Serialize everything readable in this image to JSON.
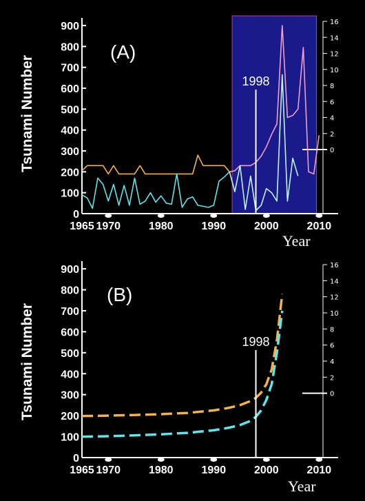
{
  "colors": {
    "background": "#000000",
    "axis": "#ffffff",
    "highlight": "#1a1a8c",
    "orange": "#f2b34a",
    "cyan": "#5ee6ea",
    "pink": "#f0a0c8",
    "light_cyan": "#bff4f6"
  },
  "chart_data": [
    {
      "type": "line",
      "panel_label": "(A)",
      "ylabel": "Tsunami Number",
      "xlabel": "Year",
      "xlim": [
        1965,
        2011
      ],
      "ylim": [
        0,
        920
      ],
      "x_ticks": [
        1965,
        1970,
        1980,
        1990,
        2000,
        2010
      ],
      "y_ticks": [
        0,
        100,
        200,
        300,
        400,
        500,
        600,
        700,
        800,
        900
      ],
      "right_axis_ticks": [
        0,
        2,
        4,
        6,
        8,
        10,
        12,
        14,
        16
      ],
      "right_axis_ylim": [
        -8,
        16
      ],
      "annotation": {
        "text": "1998",
        "x": 1998
      },
      "highlight_x": [
        1993.5,
        2009.5
      ],
      "series": [
        {
          "color": "orange",
          "x": [
            1965,
            1966,
            1967,
            1968,
            1969,
            1970,
            1971,
            1972,
            1973,
            1974,
            1975,
            1976,
            1977,
            1978,
            1979,
            1980,
            1981,
            1982,
            1983,
            1984,
            1985,
            1986,
            1987,
            1988,
            1989,
            1990,
            1991,
            1992,
            1993
          ],
          "y": [
            205,
            230,
            230,
            230,
            230,
            190,
            230,
            190,
            190,
            190,
            190,
            230,
            190,
            190,
            190,
            190,
            190,
            190,
            190,
            190,
            190,
            190,
            280,
            230,
            230,
            230,
            230,
            230,
            200
          ]
        },
        {
          "color": "cyan",
          "x": [
            1965,
            1966,
            1967,
            1968,
            1969,
            1970,
            1971,
            1972,
            1973,
            1974,
            1975,
            1976,
            1977,
            1978,
            1979,
            1980,
            1981,
            1982,
            1983,
            1984,
            1985,
            1986,
            1987,
            1988,
            1989,
            1990,
            1991,
            1992,
            1993
          ],
          "y": [
            90,
            75,
            25,
            170,
            140,
            60,
            140,
            40,
            135,
            40,
            170,
            45,
            60,
            100,
            55,
            85,
            50,
            45,
            190,
            30,
            70,
            80,
            40,
            35,
            30,
            40,
            155,
            175,
            200
          ]
        },
        {
          "color": "pink",
          "x": [
            1993,
            1994,
            1995,
            1996,
            1997,
            1998,
            1999,
            2000,
            2001,
            2002,
            2003,
            2004,
            2005,
            2006,
            2007,
            2008,
            2009,
            2010
          ],
          "y": [
            200,
            205,
            230,
            230,
            230,
            245,
            275,
            320,
            380,
            430,
            900,
            460,
            470,
            500,
            795,
            200,
            190,
            375
          ]
        },
        {
          "color": "light_cyan",
          "x": [
            1993,
            1994,
            1995,
            1996,
            1997,
            1998,
            1999,
            2000,
            2001,
            2002,
            2003,
            2004,
            2005,
            2006
          ],
          "y": [
            200,
            105,
            230,
            20,
            180,
            15,
            40,
            120,
            100,
            60,
            665,
            60,
            265,
            180
          ]
        }
      ]
    },
    {
      "type": "line",
      "panel_label": "(B)",
      "ylabel": "Tsunami Number",
      "xlabel": "Year",
      "xlim": [
        1965,
        2011
      ],
      "ylim": [
        0,
        920
      ],
      "x_ticks": [
        1965,
        1970,
        1980,
        1990,
        2000,
        2010
      ],
      "y_ticks": [
        0,
        100,
        200,
        300,
        400,
        500,
        600,
        700,
        800,
        900
      ],
      "right_axis_ticks": [
        0,
        2,
        4,
        6,
        8,
        10,
        12,
        14,
        16
      ],
      "right_axis_ylim": [
        -8,
        16
      ],
      "annotation": {
        "text": "1998",
        "x": 1998
      },
      "series": [
        {
          "color": "orange",
          "style": "dashed",
          "x": [
            1965,
            1970,
            1975,
            1980,
            1985,
            1990,
            1993,
            1995,
            1997,
            1998,
            1999,
            2000,
            2001,
            2002,
            2003
          ],
          "y": [
            198,
            200,
            203,
            207,
            213,
            225,
            238,
            250,
            270,
            285,
            310,
            350,
            420,
            560,
            780
          ]
        },
        {
          "color": "cyan",
          "style": "dashed",
          "x": [
            1965,
            1970,
            1975,
            1980,
            1985,
            1990,
            1993,
            1995,
            1997,
            1998,
            1999,
            2000,
            2001,
            2002,
            2003
          ],
          "y": [
            100,
            102,
            106,
            111,
            118,
            130,
            143,
            155,
            175,
            195,
            225,
            275,
            350,
            500,
            700
          ]
        }
      ]
    }
  ]
}
